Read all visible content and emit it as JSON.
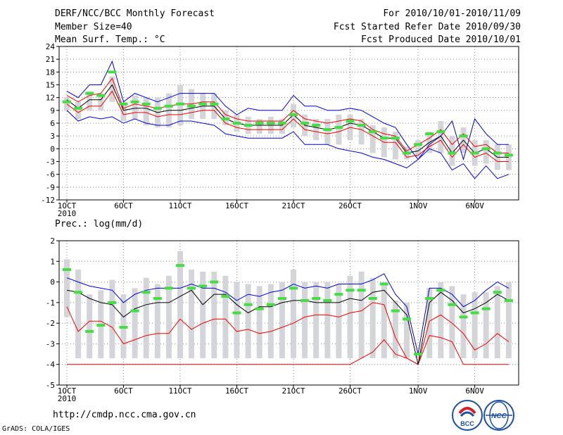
{
  "header": {
    "title": "DERF/NCC/BCC Monthly Forecast",
    "member_size": "Member Size=40",
    "variable": "Mean Surf. Temp.: °C",
    "period": "For 2010/10/01-2010/11/09",
    "started": "Fcst Started Refer Date 2010/09/30",
    "produced": "Fcst Produced Date 2010/10/01"
  },
  "footer": {
    "url": "http://cmdp.ncc.cma.gov.cn",
    "grads": "GrADS: COLA/IGES",
    "logo_bcc": "BCC",
    "logo_ncc": "NCC"
  },
  "colors": {
    "box": "#d4d5d9",
    "median": "#44dd44",
    "mean": "#000000",
    "upper": "#0000cc",
    "lower": "#ee0000",
    "grid": "#888888"
  },
  "chart_data": [
    {
      "type": "line",
      "title": "Mean Surf. Temp.: °C",
      "x_tick_labels": [
        "1OCT",
        "6OCT",
        "11OCT",
        "16OCT",
        "21OCT",
        "26OCT",
        "1NOV",
        "6NOV"
      ],
      "x_tick_days": [
        1,
        6,
        11,
        16,
        21,
        26,
        32,
        37
      ],
      "x_extra_label": "2010",
      "ylim": [
        -12,
        24
      ],
      "yticks": [
        -12,
        -9,
        -6,
        -3,
        0,
        3,
        6,
        9,
        12,
        15,
        18,
        21,
        24
      ],
      "days": [
        1,
        2,
        3,
        4,
        5,
        6,
        7,
        8,
        9,
        10,
        11,
        12,
        13,
        14,
        15,
        16,
        17,
        18,
        19,
        20,
        21,
        22,
        23,
        24,
        25,
        26,
        27,
        28,
        29,
        30,
        31,
        32,
        33,
        34,
        35,
        36,
        37,
        38,
        39,
        40
      ],
      "series": [
        {
          "name": "max",
          "color": "blue",
          "values": [
            13.5,
            12,
            15,
            15,
            20.5,
            11,
            13,
            12,
            11,
            12,
            13,
            13,
            13,
            13,
            10,
            8,
            9.5,
            9,
            9,
            9,
            12.5,
            10,
            10,
            9,
            9,
            9.5,
            9,
            7.5,
            6,
            5,
            1,
            -2.5,
            1,
            3,
            6.5,
            -2.5,
            7,
            3.5,
            1,
            1
          ]
        },
        {
          "name": "upper",
          "color": "red",
          "values": [
            12.5,
            11,
            12.5,
            13,
            16.5,
            9.5,
            10.5,
            10,
            9.5,
            10,
            10.5,
            10.5,
            11,
            11,
            8,
            7,
            6.5,
            6.5,
            6.5,
            6.5,
            9,
            7,
            6.5,
            6,
            6.5,
            7,
            6.5,
            4.5,
            3.5,
            3,
            -0.5,
            1,
            2.5,
            4.5,
            1,
            3.5,
            0.5,
            1,
            -1,
            -1
          ]
        },
        {
          "name": "mean",
          "color": "black",
          "values": [
            11.5,
            9.5,
            11.5,
            11.5,
            15,
            9,
            9.5,
            9.5,
            8.5,
            9,
            9,
            9.5,
            10,
            10,
            7,
            6,
            5.5,
            5.5,
            5.5,
            5.5,
            8,
            5.5,
            5,
            4.5,
            5,
            6,
            5.5,
            4,
            2.5,
            2.5,
            -1,
            -0.5,
            1.5,
            3,
            -1,
            2,
            -1,
            0,
            -2,
            -2
          ]
        },
        {
          "name": "lower",
          "color": "red",
          "values": [
            10.5,
            8.5,
            10,
            10,
            13.5,
            8,
            8.5,
            8.5,
            7.5,
            8,
            8,
            8.5,
            9,
            9,
            6,
            5,
            4.5,
            4.5,
            4.5,
            4.5,
            7,
            4.5,
            4,
            3.5,
            4,
            5,
            4.5,
            3,
            1.5,
            1.5,
            -2,
            -1.5,
            0.5,
            2,
            -2,
            1,
            -2,
            -1,
            -3,
            -3
          ]
        },
        {
          "name": "min",
          "color": "blue",
          "values": [
            9,
            6.5,
            7.5,
            7,
            7.5,
            6,
            7,
            6,
            5.5,
            5.5,
            6.5,
            6.5,
            6,
            5.5,
            3.5,
            3,
            2.5,
            2.5,
            2.5,
            2.5,
            4,
            1,
            1,
            1,
            0,
            -0.5,
            -1,
            -2,
            -2.5,
            -3.5,
            -4.5,
            -2.5,
            0,
            -1,
            -5,
            -3.5,
            -7,
            -4,
            -7,
            -6
          ]
        },
        {
          "name": "median",
          "color": "green",
          "values": [
            11,
            9.5,
            13,
            12.5,
            18,
            10.5,
            11,
            10.5,
            9.5,
            10,
            10.5,
            10,
            10.5,
            10.5,
            7,
            6,
            5.5,
            6,
            6,
            6,
            8,
            6,
            5.5,
            4.5,
            5,
            6.5,
            5.5,
            4,
            2.5,
            2.5,
            -1,
            1,
            3.5,
            4,
            -1,
            3,
            -1,
            0,
            -1,
            -1.5
          ]
        },
        {
          "name": "box_top",
          "color": "gray",
          "values": [
            12,
            11,
            13.5,
            13,
            17,
            11,
            12.5,
            12,
            12,
            13,
            15,
            14,
            13,
            13,
            9,
            8,
            7.5,
            7,
            7.5,
            7,
            10.5,
            8,
            7,
            7,
            8,
            8,
            7,
            5.5,
            5,
            4,
            0.5,
            2,
            4,
            6.5,
            3,
            5,
            2,
            2,
            1,
            1
          ]
        },
        {
          "name": "box_bottom",
          "color": "gray",
          "values": [
            9,
            7,
            9,
            9,
            11,
            6.5,
            7,
            5.5,
            5,
            5,
            5.5,
            7,
            7,
            7,
            5.5,
            4,
            3.5,
            3.5,
            3.5,
            3.5,
            5,
            3,
            2,
            1,
            1,
            2,
            1,
            -1,
            -2,
            -2.5,
            -2.5,
            -2,
            -1,
            -1,
            -4,
            -1,
            -4,
            -3.5,
            -5,
            -5
          ]
        }
      ]
    },
    {
      "type": "line",
      "title": "Prec.: log(mm/d)",
      "x_tick_labels": [
        "1OCT",
        "6OCT",
        "11OCT",
        "16OCT",
        "21OCT",
        "26OCT",
        "1NOV",
        "6NOV"
      ],
      "x_tick_days": [
        1,
        6,
        11,
        16,
        21,
        26,
        32,
        37
      ],
      "x_extra_label": "2010",
      "ylim": [
        -5,
        2
      ],
      "yticks": [
        -5,
        -4,
        -3,
        -2,
        -1,
        0,
        1,
        2
      ],
      "days": [
        1,
        2,
        3,
        4,
        5,
        6,
        7,
        8,
        9,
        10,
        11,
        12,
        13,
        14,
        15,
        16,
        17,
        18,
        19,
        20,
        21,
        22,
        23,
        24,
        25,
        26,
        27,
        28,
        29,
        30,
        31,
        32,
        33,
        34,
        35,
        36,
        37,
        38,
        39,
        40
      ],
      "series": [
        {
          "name": "max",
          "color": "blue",
          "values": [
            0.2,
            0,
            -0.2,
            -0.3,
            -0.4,
            -1,
            -0.6,
            -0.4,
            -0.3,
            -0.3,
            -0.3,
            -0.1,
            -0.3,
            -0.3,
            -0.5,
            -0.9,
            -0.6,
            -0.7,
            -0.5,
            -0.4,
            -0.1,
            -0.3,
            -0.2,
            -0.3,
            -0.1,
            -0.1,
            -0.1,
            0.1,
            0.4,
            -0.6,
            -1.2,
            -3.5,
            -0.3,
            -0.3,
            -0.6,
            -1.2,
            -0.9,
            -0.4,
            0,
            -0.3
          ]
        },
        {
          "name": "mean",
          "color": "black",
          "values": [
            -0.4,
            -0.5,
            -0.8,
            -1,
            -1.1,
            -1.7,
            -1.3,
            -1.1,
            -1,
            -1,
            -0.7,
            -0.4,
            -1.1,
            -0.6,
            -0.6,
            -1.1,
            -1.5,
            -1.2,
            -1.2,
            -1,
            -0.9,
            -0.9,
            -1,
            -1,
            -1,
            -0.8,
            -0.9,
            -0.5,
            -0.4,
            -1,
            -1.6,
            -4,
            -1,
            -0.5,
            -0.9,
            -1.5,
            -1.3,
            -1,
            -0.6,
            -0.9
          ]
        },
        {
          "name": "lower",
          "color": "red",
          "values": [
            -1.2,
            -2.4,
            -1.9,
            -1.9,
            -2.2,
            -3,
            -2.8,
            -2.6,
            -2.5,
            -2.5,
            -1.8,
            -2.3,
            -2,
            -1.8,
            -1.8,
            -2.4,
            -2.3,
            -2.5,
            -2.4,
            -2.2,
            -2,
            -1.7,
            -1.6,
            -1.6,
            -1.7,
            -1.5,
            -1.4,
            -1,
            -1.1,
            -2.7,
            -3.7,
            -4,
            -1.9,
            -1.6,
            -2,
            -2.5,
            -3.3,
            -3,
            -2.5,
            -2.9
          ]
        },
        {
          "name": "min",
          "color": "red",
          "values": [
            -4,
            -4,
            -4,
            -4,
            -4,
            -4,
            -4,
            -4,
            -4,
            -4,
            -4,
            -4,
            -4,
            -4,
            -4,
            -4,
            -4,
            -4,
            -4,
            -4,
            -4,
            -4,
            -4,
            -4,
            -4,
            -4,
            -3.7,
            -3.4,
            -2.8,
            -3.5,
            -3.7,
            -4,
            -2.6,
            -2.7,
            -2.9,
            -4,
            -4,
            -4,
            -4,
            -4
          ]
        },
        {
          "name": "median",
          "color": "green",
          "values": [
            0.6,
            -0.5,
            -2.4,
            -2.1,
            -1,
            -2.2,
            -1.4,
            -0.5,
            -0.8,
            -0.3,
            0.8,
            -0.3,
            -0.2,
            0,
            -0.7,
            -1.5,
            -1.1,
            -1.3,
            -1.1,
            -0.8,
            -0.3,
            -0.9,
            -0.8,
            -0.9,
            -0.6,
            -0.4,
            -0.4,
            -0.8,
            -0.1,
            -1.4,
            -1.8,
            -3.5,
            -0.8,
            -0.4,
            -1.1,
            -1.7,
            -1.5,
            -1.3,
            -0.5,
            -0.9
          ]
        },
        {
          "name": "box_top",
          "color": "gray",
          "values": [
            1.1,
            0.6,
            -0.6,
            -0.4,
            0.1,
            -0.6,
            -0.3,
            0.2,
            -0.1,
            0.3,
            1.5,
            0.6,
            0.5,
            0.5,
            0.3,
            0,
            -0.1,
            -0.2,
            -0.1,
            0,
            0.6,
            0,
            0,
            0,
            -0.1,
            0.3,
            0.5,
            0.2,
            0,
            -0.9,
            -1,
            -3.4,
            -0.3,
            0,
            -0.2,
            -0.6,
            -0.5,
            -0.5,
            -0.2,
            0
          ]
        },
        {
          "name": "box_bottom",
          "color": "gray",
          "values": [
            -1.7,
            -3.7,
            -3.7,
            -3.7,
            -3.7,
            -3.7,
            -3.7,
            -3.7,
            -3.7,
            -3.7,
            -3.7,
            -3.7,
            -3.7,
            -3.7,
            -3.7,
            -3.7,
            -3.7,
            -3.7,
            -3.7,
            -3.7,
            -3.7,
            -3.7,
            -3.7,
            -3.7,
            -3.7,
            -3.7,
            -3.7,
            -3.7,
            -3.7,
            -3.7,
            -3.7,
            -3.7,
            -3.7,
            -3.7,
            -3.7,
            -3.7,
            -3.7,
            -3.7,
            -3.7,
            -3.7
          ]
        }
      ]
    }
  ]
}
